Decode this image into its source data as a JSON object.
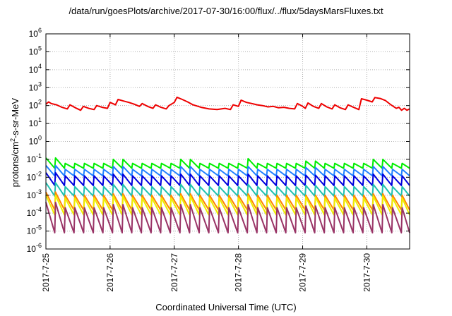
{
  "chart_data": {
    "type": "line",
    "title": "/data/run/goesPlots/archive/2017-07-30/16:00/flux/../flux/5daysMarsFluxes.txt",
    "xlabel": "Coordinated Universal Time (UTC)",
    "ylabel": {
      "prefix": "protons/cm",
      "sup": "2",
      "suffix": "-s-sr-MeV"
    },
    "yscale": "log",
    "ylim": [
      1e-06,
      1000000.0
    ],
    "xlim": [
      "2017-7-25 00:00",
      "2017-7-30 16:00"
    ],
    "grid": true,
    "x_ticks": [
      "2017-7-25",
      "2017-7-26",
      "2017-7-27",
      "2017-7-28",
      "2017-7-29",
      "2017-7-30"
    ],
    "y_ticks": [
      {
        "base": "10",
        "exp": "-6"
      },
      {
        "base": "10",
        "exp": "-5"
      },
      {
        "base": "10",
        "exp": "-4"
      },
      {
        "base": "10",
        "exp": "-3"
      },
      {
        "base": "10",
        "exp": "-2"
      },
      {
        "base": "10",
        "exp": "-1"
      },
      {
        "base": "10",
        "exp": "0"
      },
      {
        "base": "10",
        "exp": "1"
      },
      {
        "base": "10",
        "exp": "2"
      },
      {
        "base": "10",
        "exp": "3"
      },
      {
        "base": "10",
        "exp": "4"
      },
      {
        "base": "10",
        "exp": "5"
      },
      {
        "base": "10",
        "exp": "6"
      }
    ],
    "series": [
      {
        "color": "#ee0000",
        "values": [
          [
            "2017-7-25 00:00",
            120
          ],
          [
            "2017-7-25 01:00",
            160
          ],
          [
            "2017-7-25 02:00",
            130
          ],
          [
            "2017-7-25 04:00",
            110
          ],
          [
            "2017-7-25 06:00",
            80
          ],
          [
            "2017-7-25 08:00",
            65
          ],
          [
            "2017-7-25 09:00",
            110
          ],
          [
            "2017-7-25 11:00",
            75
          ],
          [
            "2017-7-25 13:00",
            55
          ],
          [
            "2017-7-25 14:00",
            90
          ],
          [
            "2017-7-25 16:00",
            70
          ],
          [
            "2017-7-25 18:00",
            60
          ],
          [
            "2017-7-25 19:00",
            100
          ],
          [
            "2017-7-25 21:00",
            80
          ],
          [
            "2017-7-25 23:00",
            70
          ],
          [
            "2017-7-26 00:00",
            150
          ],
          [
            "2017-7-26 02:00",
            110
          ],
          [
            "2017-7-26 03:00",
            220
          ],
          [
            "2017-7-26 05:00",
            180
          ],
          [
            "2017-7-26 07:00",
            150
          ],
          [
            "2017-7-26 09:00",
            120
          ],
          [
            "2017-7-26 11:00",
            90
          ],
          [
            "2017-7-26 12:00",
            130
          ],
          [
            "2017-7-26 14:00",
            90
          ],
          [
            "2017-7-26 16:00",
            70
          ],
          [
            "2017-7-26 17:00",
            110
          ],
          [
            "2017-7-26 19:00",
            80
          ],
          [
            "2017-7-26 21:00",
            65
          ],
          [
            "2017-7-26 22:00",
            100
          ],
          [
            "2017-7-27 00:00",
            150
          ],
          [
            "2017-7-27 01:00",
            290
          ],
          [
            "2017-7-27 03:00",
            220
          ],
          [
            "2017-7-27 05:00",
            160
          ],
          [
            "2017-7-27 07:00",
            110
          ],
          [
            "2017-7-27 10:00",
            80
          ],
          [
            "2017-7-27 13:00",
            65
          ],
          [
            "2017-7-27 16:00",
            60
          ],
          [
            "2017-7-27 19:00",
            70
          ],
          [
            "2017-7-27 21:00",
            60
          ],
          [
            "2017-7-27 22:00",
            110
          ],
          [
            "2017-7-28 00:00",
            90
          ],
          [
            "2017-7-28 01:00",
            200
          ],
          [
            "2017-7-28 03:00",
            150
          ],
          [
            "2017-7-28 05:00",
            130
          ],
          [
            "2017-7-28 07:00",
            110
          ],
          [
            "2017-7-28 09:00",
            100
          ],
          [
            "2017-7-28 11:00",
            85
          ],
          [
            "2017-7-28 13:00",
            90
          ],
          [
            "2017-7-28 15:00",
            75
          ],
          [
            "2017-7-28 17:00",
            80
          ],
          [
            "2017-7-28 19:00",
            70
          ],
          [
            "2017-7-28 21:00",
            65
          ],
          [
            "2017-7-28 22:00",
            130
          ],
          [
            "2017-7-29 00:00",
            90
          ],
          [
            "2017-7-29 01:00",
            70
          ],
          [
            "2017-7-29 02:00",
            140
          ],
          [
            "2017-7-29 04:00",
            90
          ],
          [
            "2017-7-29 06:00",
            70
          ],
          [
            "2017-7-29 07:00",
            130
          ],
          [
            "2017-7-29 09:00",
            85
          ],
          [
            "2017-7-29 11:00",
            65
          ],
          [
            "2017-7-29 12:00",
            110
          ],
          [
            "2017-7-29 14:00",
            75
          ],
          [
            "2017-7-29 16:00",
            60
          ],
          [
            "2017-7-29 17:00",
            110
          ],
          [
            "2017-7-29 19:00",
            80
          ],
          [
            "2017-7-29 21:00",
            60
          ],
          [
            "2017-7-29 22:00",
            240
          ],
          [
            "2017-7-30 00:00",
            200
          ],
          [
            "2017-7-30 02:00",
            160
          ],
          [
            "2017-7-30 03:00",
            280
          ],
          [
            "2017-7-30 05:00",
            250
          ],
          [
            "2017-7-30 07:00",
            190
          ],
          [
            "2017-7-30 09:00",
            110
          ],
          [
            "2017-7-30 11:00",
            70
          ],
          [
            "2017-7-30 12:00",
            80
          ],
          [
            "2017-7-30 13:00",
            55
          ],
          [
            "2017-7-30 14:00",
            70
          ],
          [
            "2017-7-30 15:00",
            55
          ],
          [
            "2017-7-30 16:00",
            65
          ]
        ]
      },
      {
        "color": "#00ee00",
        "base": 0.032,
        "peak": 0.06,
        "bump": [
          0.12,
          0.1,
          0.1,
          0.11,
          0.08,
          0.1
        ]
      },
      {
        "color": "#2080ff",
        "base": 0.012,
        "peak": 0.028,
        "bump": [
          0.045,
          0.04,
          0.04,
          0.04,
          0.035,
          0.04
        ]
      },
      {
        "color": "#0000dd",
        "base": 0.0035,
        "peak": 0.012,
        "bump": [
          0.018,
          0.015,
          0.015,
          0.015,
          0.013,
          0.015
        ]
      },
      {
        "color": "#20c0b0",
        "base": 0.0009,
        "peak": 0.003,
        "bump": [
          0.005,
          0.004,
          0.004,
          0.004,
          0.0035,
          0.004
        ]
      },
      {
        "color": "#ff8800",
        "base": 0.00015,
        "peak": 0.001,
        "bump": [
          0.0015,
          0.0012,
          0.0012,
          0.0012,
          0.001,
          0.0012
        ]
      },
      {
        "color": "#eeee00",
        "base": 8e-05,
        "peak": 0.0007,
        "bump": [
          0.001,
          0.0009,
          0.0009,
          0.0009,
          0.0008,
          0.0009
        ]
      },
      {
        "color": "#993366",
        "base": 8e-06,
        "peak": 0.0002,
        "bump": [
          0.0004,
          0.0003,
          0.0003,
          0.0003,
          0.00025,
          0.0003
        ]
      }
    ]
  }
}
